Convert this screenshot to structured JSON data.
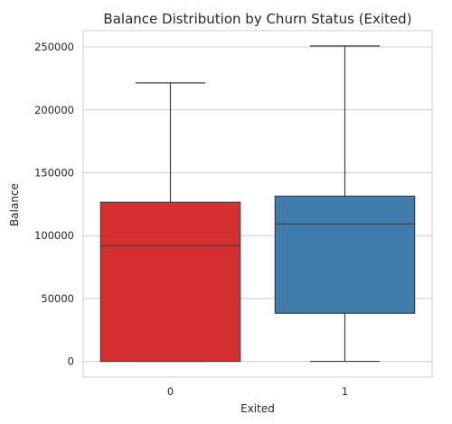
{
  "chart_data": {
    "type": "box",
    "title": "Balance Distribution by Churn Status (Exited)",
    "xlabel": "Exited",
    "ylabel": "Balance",
    "categories": [
      "0",
      "1"
    ],
    "boxes": [
      {
        "category": "0",
        "color": "#d62f31",
        "whisker_low": 0,
        "q1": 0,
        "median": 92000,
        "q3": 126500,
        "whisker_high": 221500
      },
      {
        "category": "1",
        "color": "#417cae",
        "whisker_low": 0,
        "q1": 38300,
        "median": 109300,
        "q3": 131400,
        "whisker_high": 250900
      }
    ],
    "yticks": [
      0,
      50000,
      100000,
      150000,
      200000,
      250000
    ],
    "ylim": [
      -12500,
      263000
    ],
    "grid": true
  }
}
